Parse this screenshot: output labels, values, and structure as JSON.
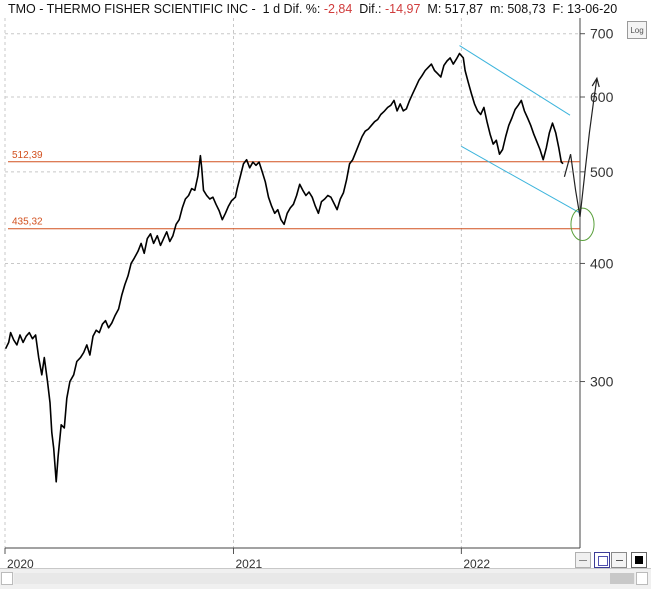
{
  "header": {
    "symbol": "TMO",
    "sep1": " - ",
    "name": "THERMO FISHER SCIENTIFIC INC",
    "sep2": " - ",
    "period": "1 d",
    "dif_pct_label": "Dif. %:",
    "dif_pct_value": "-2,84",
    "dif_label": "Dif.:",
    "dif_value": "-14,97",
    "max_label": "M:",
    "max_value": "517,87",
    "min_label": "m:",
    "min_value": "508,73",
    "date_label": "F:",
    "date_value": "13-06-20"
  },
  "log_button": "Log",
  "colors": {
    "price": "#000000",
    "level": "#d2501e",
    "channel": "#3cb4dc",
    "ellipse": "#5aa03c",
    "grid": "#c8c8c8",
    "negative": "#d03c3c"
  },
  "chart_data": {
    "type": "line",
    "title": "TMO - THERMO FISHER SCIENTIFIC INC",
    "scale": "log",
    "grid": true,
    "ylim": [
      200,
      715
    ],
    "xlim": [
      "2020-01-01",
      "2022-07-10"
    ],
    "y_ticks": [
      300,
      400,
      500,
      600,
      700
    ],
    "x_ticks": [
      "2020",
      "2021",
      "2022"
    ],
    "x_tick_dates": [
      "2020-01-01",
      "2021-01-01",
      "2022-01-01"
    ],
    "series": [
      {
        "type": "price",
        "points": [
          [
            "2020-01-02",
            325
          ],
          [
            "2020-01-07",
            330
          ],
          [
            "2020-01-10",
            338
          ],
          [
            "2020-01-15",
            332
          ],
          [
            "2020-01-20",
            328
          ],
          [
            "2020-01-25",
            336
          ],
          [
            "2020-01-30",
            330
          ],
          [
            "2020-02-04",
            335
          ],
          [
            "2020-02-09",
            338
          ],
          [
            "2020-02-14",
            333
          ],
          [
            "2020-02-19",
            336
          ],
          [
            "2020-02-24",
            318
          ],
          [
            "2020-02-29",
            305
          ],
          [
            "2020-03-04",
            318
          ],
          [
            "2020-03-09",
            300
          ],
          [
            "2020-03-13",
            285
          ],
          [
            "2020-03-16",
            265
          ],
          [
            "2020-03-19",
            255
          ],
          [
            "2020-03-23",
            235
          ],
          [
            "2020-03-26",
            250
          ],
          [
            "2020-03-31",
            270
          ],
          [
            "2020-04-05",
            268
          ],
          [
            "2020-04-09",
            288
          ],
          [
            "2020-04-14",
            300
          ],
          [
            "2020-04-20",
            305
          ],
          [
            "2020-04-25",
            315
          ],
          [
            "2020-05-01",
            318
          ],
          [
            "2020-05-06",
            322
          ],
          [
            "2020-05-11",
            328
          ],
          [
            "2020-05-16",
            320
          ],
          [
            "2020-05-21",
            335
          ],
          [
            "2020-05-26",
            340
          ],
          [
            "2020-05-31",
            338
          ],
          [
            "2020-06-05",
            345
          ],
          [
            "2020-06-10",
            348
          ],
          [
            "2020-06-15",
            342
          ],
          [
            "2020-06-20",
            346
          ],
          [
            "2020-06-25",
            352
          ],
          [
            "2020-07-01",
            358
          ],
          [
            "2020-07-06",
            370
          ],
          [
            "2020-07-11",
            380
          ],
          [
            "2020-07-16",
            388
          ],
          [
            "2020-07-21",
            400
          ],
          [
            "2020-07-26",
            405
          ],
          [
            "2020-08-01",
            412
          ],
          [
            "2020-08-06",
            420
          ],
          [
            "2020-08-11",
            410
          ],
          [
            "2020-08-16",
            425
          ],
          [
            "2020-08-21",
            430
          ],
          [
            "2020-08-26",
            420
          ],
          [
            "2020-09-01",
            428
          ],
          [
            "2020-09-06",
            418
          ],
          [
            "2020-09-11",
            425
          ],
          [
            "2020-09-16",
            432
          ],
          [
            "2020-09-21",
            422
          ],
          [
            "2020-09-26",
            428
          ],
          [
            "2020-10-01",
            440
          ],
          [
            "2020-10-06",
            445
          ],
          [
            "2020-10-11",
            458
          ],
          [
            "2020-10-16",
            468
          ],
          [
            "2020-10-21",
            472
          ],
          [
            "2020-10-26",
            480
          ],
          [
            "2020-10-31",
            478
          ],
          [
            "2020-11-05",
            495
          ],
          [
            "2020-11-09",
            520
          ],
          [
            "2020-11-11",
            505
          ],
          [
            "2020-11-14",
            478
          ],
          [
            "2020-11-19",
            472
          ],
          [
            "2020-11-24",
            468
          ],
          [
            "2020-11-29",
            470
          ],
          [
            "2020-12-04",
            462
          ],
          [
            "2020-12-09",
            455
          ],
          [
            "2020-12-14",
            445
          ],
          [
            "2020-12-19",
            452
          ],
          [
            "2020-12-24",
            460
          ],
          [
            "2020-12-29",
            466
          ],
          [
            "2021-01-04",
            470
          ],
          [
            "2021-01-07",
            480
          ],
          [
            "2021-01-12",
            495
          ],
          [
            "2021-01-17",
            510
          ],
          [
            "2021-01-22",
            515
          ],
          [
            "2021-01-27",
            505
          ],
          [
            "2021-02-01",
            512
          ],
          [
            "2021-02-06",
            508
          ],
          [
            "2021-02-11",
            512
          ],
          [
            "2021-02-16",
            500
          ],
          [
            "2021-02-21",
            488
          ],
          [
            "2021-02-26",
            470
          ],
          [
            "2021-03-03",
            460
          ],
          [
            "2021-03-08",
            452
          ],
          [
            "2021-03-13",
            456
          ],
          [
            "2021-03-18",
            445
          ],
          [
            "2021-03-23",
            440
          ],
          [
            "2021-03-28",
            452
          ],
          [
            "2021-04-02",
            458
          ],
          [
            "2021-04-07",
            462
          ],
          [
            "2021-04-12",
            472
          ],
          [
            "2021-04-17",
            485
          ],
          [
            "2021-04-22",
            478
          ],
          [
            "2021-04-27",
            472
          ],
          [
            "2021-05-02",
            476
          ],
          [
            "2021-05-07",
            470
          ],
          [
            "2021-05-12",
            460
          ],
          [
            "2021-05-17",
            452
          ],
          [
            "2021-05-22",
            465
          ],
          [
            "2021-05-27",
            468
          ],
          [
            "2021-06-01",
            472
          ],
          [
            "2021-06-06",
            470
          ],
          [
            "2021-06-11",
            463
          ],
          [
            "2021-06-16",
            456
          ],
          [
            "2021-06-21",
            468
          ],
          [
            "2021-06-26",
            475
          ],
          [
            "2021-07-01",
            490
          ],
          [
            "2021-07-06",
            510
          ],
          [
            "2021-07-11",
            515
          ],
          [
            "2021-07-16",
            525
          ],
          [
            "2021-07-21",
            535
          ],
          [
            "2021-07-26",
            545
          ],
          [
            "2021-07-31",
            552
          ],
          [
            "2021-08-05",
            555
          ],
          [
            "2021-08-10",
            560
          ],
          [
            "2021-08-15",
            565
          ],
          [
            "2021-08-20",
            568
          ],
          [
            "2021-08-25",
            575
          ],
          [
            "2021-08-31",
            580
          ],
          [
            "2021-09-05",
            585
          ],
          [
            "2021-09-10",
            588
          ],
          [
            "2021-09-15",
            595
          ],
          [
            "2021-09-20",
            580
          ],
          [
            "2021-09-25",
            590
          ],
          [
            "2021-09-30",
            580
          ],
          [
            "2021-10-05",
            583
          ],
          [
            "2021-10-10",
            595
          ],
          [
            "2021-10-15",
            605
          ],
          [
            "2021-10-20",
            615
          ],
          [
            "2021-10-25",
            625
          ],
          [
            "2021-10-30",
            632
          ],
          [
            "2021-11-04",
            640
          ],
          [
            "2021-11-09",
            645
          ],
          [
            "2021-11-14",
            650
          ],
          [
            "2021-11-19",
            640
          ],
          [
            "2021-11-24",
            635
          ],
          [
            "2021-11-29",
            630
          ],
          [
            "2021-12-04",
            648
          ],
          [
            "2021-12-09",
            655
          ],
          [
            "2021-12-14",
            660
          ],
          [
            "2021-12-19",
            650
          ],
          [
            "2021-12-24",
            658
          ],
          [
            "2021-12-29",
            667
          ],
          [
            "2022-01-04",
            660
          ],
          [
            "2022-01-07",
            640
          ],
          [
            "2022-01-12",
            622
          ],
          [
            "2022-01-17",
            605
          ],
          [
            "2022-01-22",
            590
          ],
          [
            "2022-01-27",
            580
          ],
          [
            "2022-02-01",
            575
          ],
          [
            "2022-02-06",
            585
          ],
          [
            "2022-02-11",
            565
          ],
          [
            "2022-02-16",
            548
          ],
          [
            "2022-02-21",
            535
          ],
          [
            "2022-02-26",
            540
          ],
          [
            "2022-03-03",
            522
          ],
          [
            "2022-03-08",
            528
          ],
          [
            "2022-03-13",
            545
          ],
          [
            "2022-03-18",
            560
          ],
          [
            "2022-03-23",
            570
          ],
          [
            "2022-03-28",
            582
          ],
          [
            "2022-04-02",
            588
          ],
          [
            "2022-04-07",
            595
          ],
          [
            "2022-04-12",
            580
          ],
          [
            "2022-04-17",
            570
          ],
          [
            "2022-04-22",
            560
          ],
          [
            "2022-04-27",
            548
          ],
          [
            "2022-05-02",
            538
          ],
          [
            "2022-05-07",
            528
          ],
          [
            "2022-05-12",
            515
          ],
          [
            "2022-05-17",
            530
          ],
          [
            "2022-05-22",
            550
          ],
          [
            "2022-05-27",
            563
          ],
          [
            "2022-06-01",
            550
          ],
          [
            "2022-06-06",
            530
          ],
          [
            "2022-06-10",
            512
          ],
          [
            "2022-06-13",
            510
          ]
        ]
      },
      {
        "type": "level",
        "name": "512,39",
        "value": 512.39,
        "label": "512,39"
      },
      {
        "type": "level",
        "name": "435,32",
        "value": 435.32,
        "label": "435,32"
      },
      {
        "type": "channel-line",
        "points": [
          [
            "2021-12-29",
            680
          ],
          [
            "2022-06-24",
            574
          ]
        ]
      },
      {
        "type": "channel-line",
        "points": [
          [
            "2022-01-01",
            532
          ],
          [
            "2022-07-08",
            453
          ]
        ]
      },
      {
        "type": "projection-arrow",
        "points": [
          [
            "2022-06-15",
            494
          ],
          [
            "2022-06-25",
            522
          ],
          [
            "2022-07-03",
            478
          ],
          [
            "2022-07-10",
            448
          ],
          [
            "2022-07-18",
            500
          ],
          [
            "2022-07-25",
            550
          ],
          [
            "2022-08-01",
            595
          ],
          [
            "2022-08-06",
            628
          ]
        ]
      },
      {
        "type": "target-ellipse",
        "center": [
          "2022-07-14",
          440
        ],
        "span_days": 37,
        "span_value": [
          425,
          460
        ]
      }
    ]
  }
}
